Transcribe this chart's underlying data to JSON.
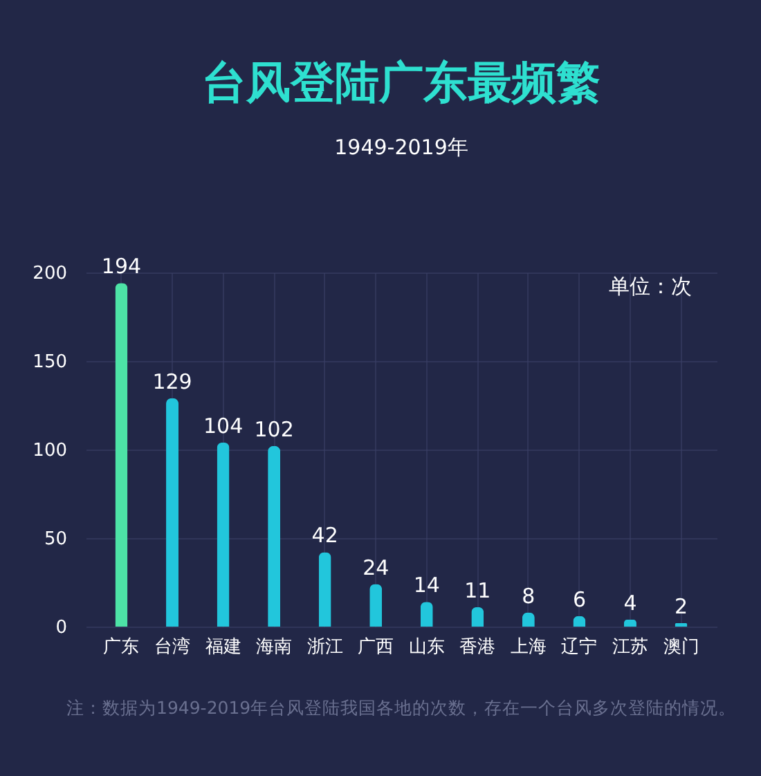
{
  "chart_data": {
    "type": "bar",
    "title": "台风登陆广东最频繁",
    "subtitle": "1949-2019年",
    "categories": [
      "广东",
      "台湾",
      "福建",
      "海南",
      "浙江",
      "广西",
      "山东",
      "香港",
      "上海",
      "辽宁",
      "江苏",
      "澳门"
    ],
    "values": [
      194,
      129,
      104,
      102,
      42,
      24,
      14,
      11,
      8,
      6,
      4,
      2
    ],
    "colors": [
      "#4de3a6",
      "#22c6dc",
      "#22c6dc",
      "#22c6dc",
      "#22c6dc",
      "#22c6dc",
      "#22c6dc",
      "#22c6dc",
      "#22c6dc",
      "#22c6dc",
      "#22c6dc",
      "#22c6dc"
    ],
    "ylim": [
      0,
      200
    ],
    "yticks": [
      0,
      50,
      100,
      150,
      200
    ],
    "grid": true,
    "data_labels": true,
    "annotations": [
      "单位：次",
      "注：数据为1949-2019年台风登陆我国各地的次数，存在一个台风多次登陆的情况。"
    ]
  }
}
